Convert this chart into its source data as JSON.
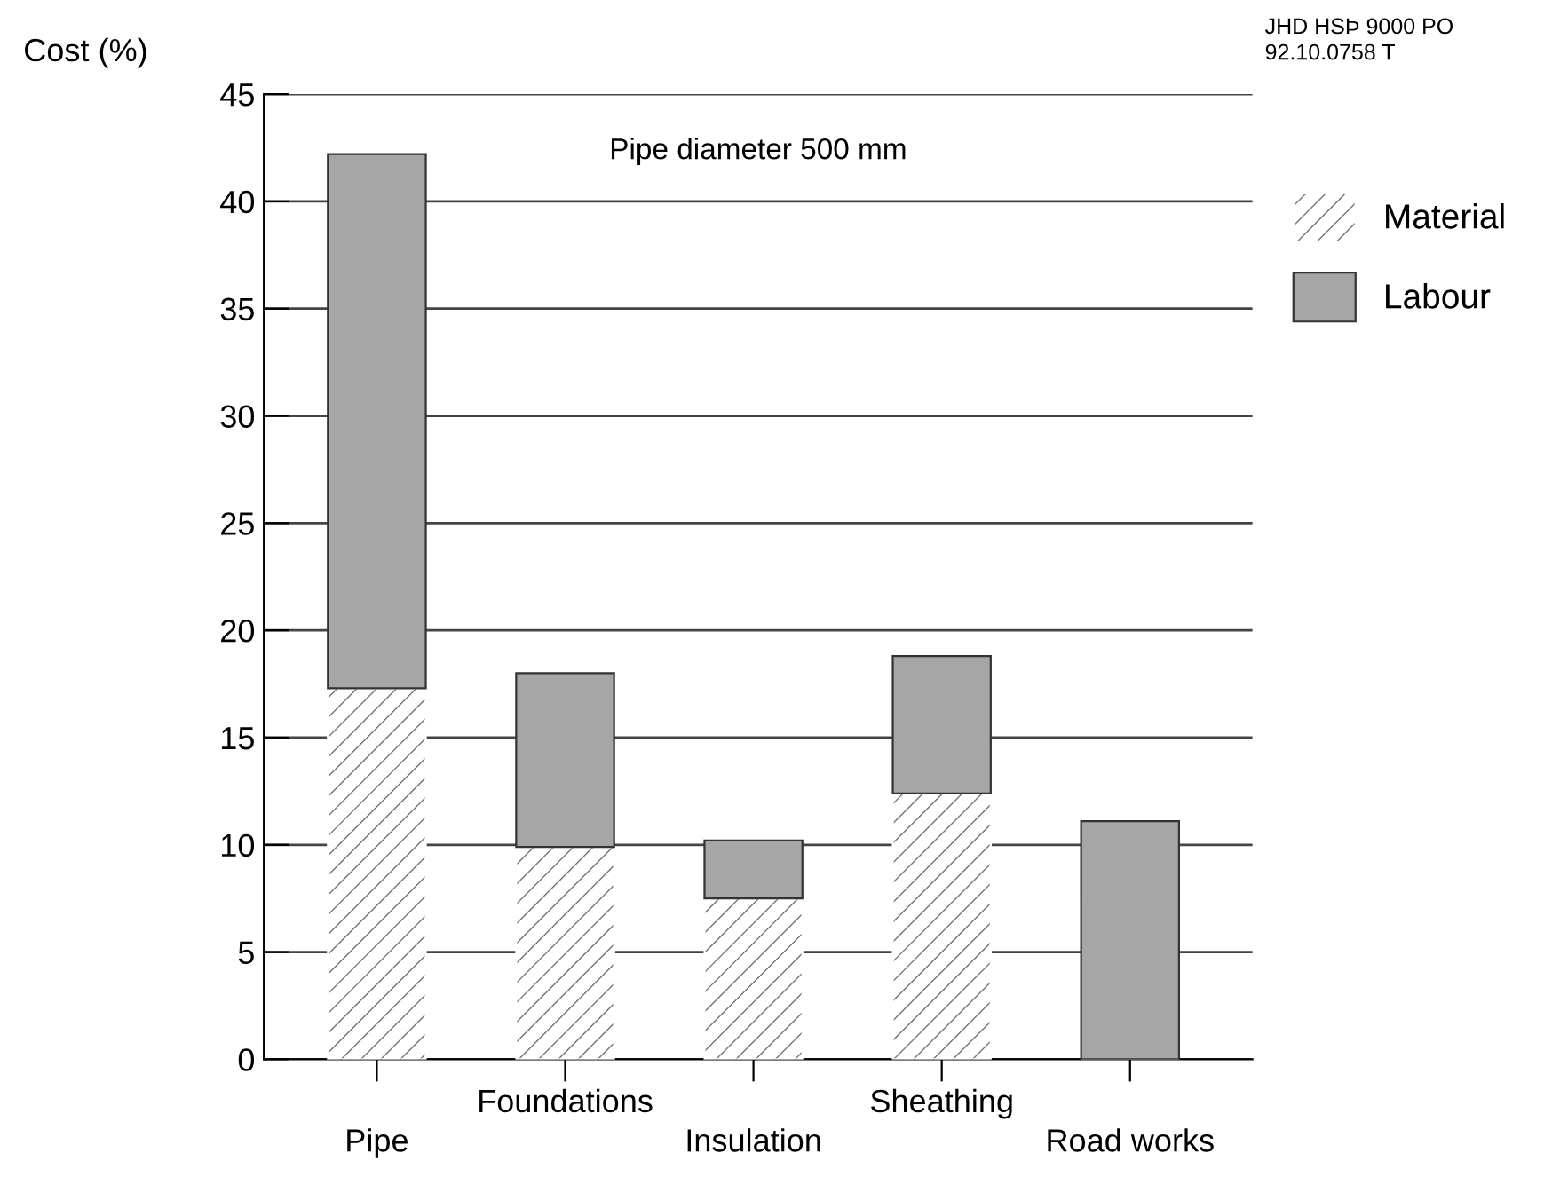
{
  "chart_data": {
    "type": "bar",
    "title": "Pipe diameter 500 mm",
    "ylabel": "Cost (%)",
    "annotations": [
      "JHD HSÞ 9000 PO",
      "92.10.0758 T"
    ],
    "categories": [
      "Pipe",
      "Foundations",
      "Insulation",
      "Sheathing",
      "Road works"
    ],
    "stacked": true,
    "series": [
      {
        "name": "Material",
        "color": "#ffffff",
        "values": [
          17.3,
          9.9,
          7.5,
          12.4,
          0
        ]
      },
      {
        "name": "Labour",
        "color": "#a6a6a6",
        "values": [
          24.9,
          8.1,
          2.7,
          6.4,
          11.1
        ]
      }
    ],
    "ylim": [
      0,
      45
    ],
    "yticks": [
      0,
      5,
      10,
      15,
      20,
      25,
      30,
      35,
      40,
      45
    ],
    "grid": "y",
    "legend": "top right"
  }
}
